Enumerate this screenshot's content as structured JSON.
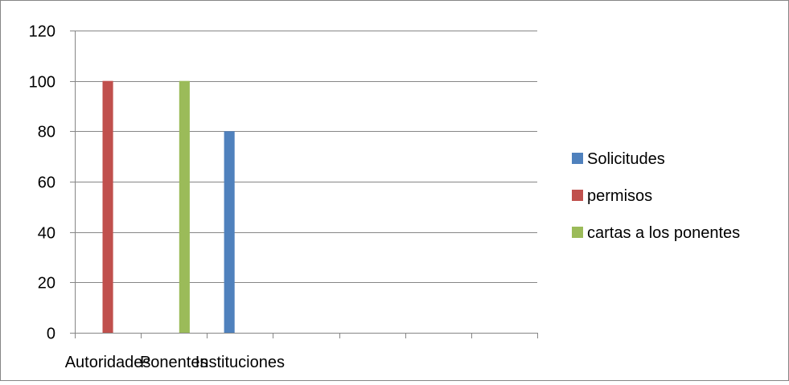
{
  "chart_data": {
    "type": "bar",
    "categories": [
      "Autoridades",
      "Ponentes",
      "Instituciones",
      "",
      "",
      "",
      ""
    ],
    "series": [
      {
        "name": "Solicitudes",
        "color": "#4F81BD",
        "values": [
          null,
          null,
          80,
          null,
          null,
          null,
          null
        ]
      },
      {
        "name": "permisos",
        "color": "#C0504D",
        "values": [
          100,
          null,
          null,
          null,
          null,
          null,
          null
        ]
      },
      {
        "name": "cartas a los ponentes",
        "color": "#9BBB59",
        "values": [
          null,
          100,
          null,
          null,
          null,
          null,
          null
        ]
      }
    ],
    "yticks": [
      0,
      20,
      40,
      60,
      80,
      100,
      120
    ],
    "ylim": [
      0,
      120
    ],
    "grid": true,
    "legend_position": "right",
    "title": "",
    "xlabel": "",
    "ylabel": ""
  },
  "colors": {
    "gridline": "#868686",
    "axis": "#868686",
    "frame": "#868686"
  }
}
